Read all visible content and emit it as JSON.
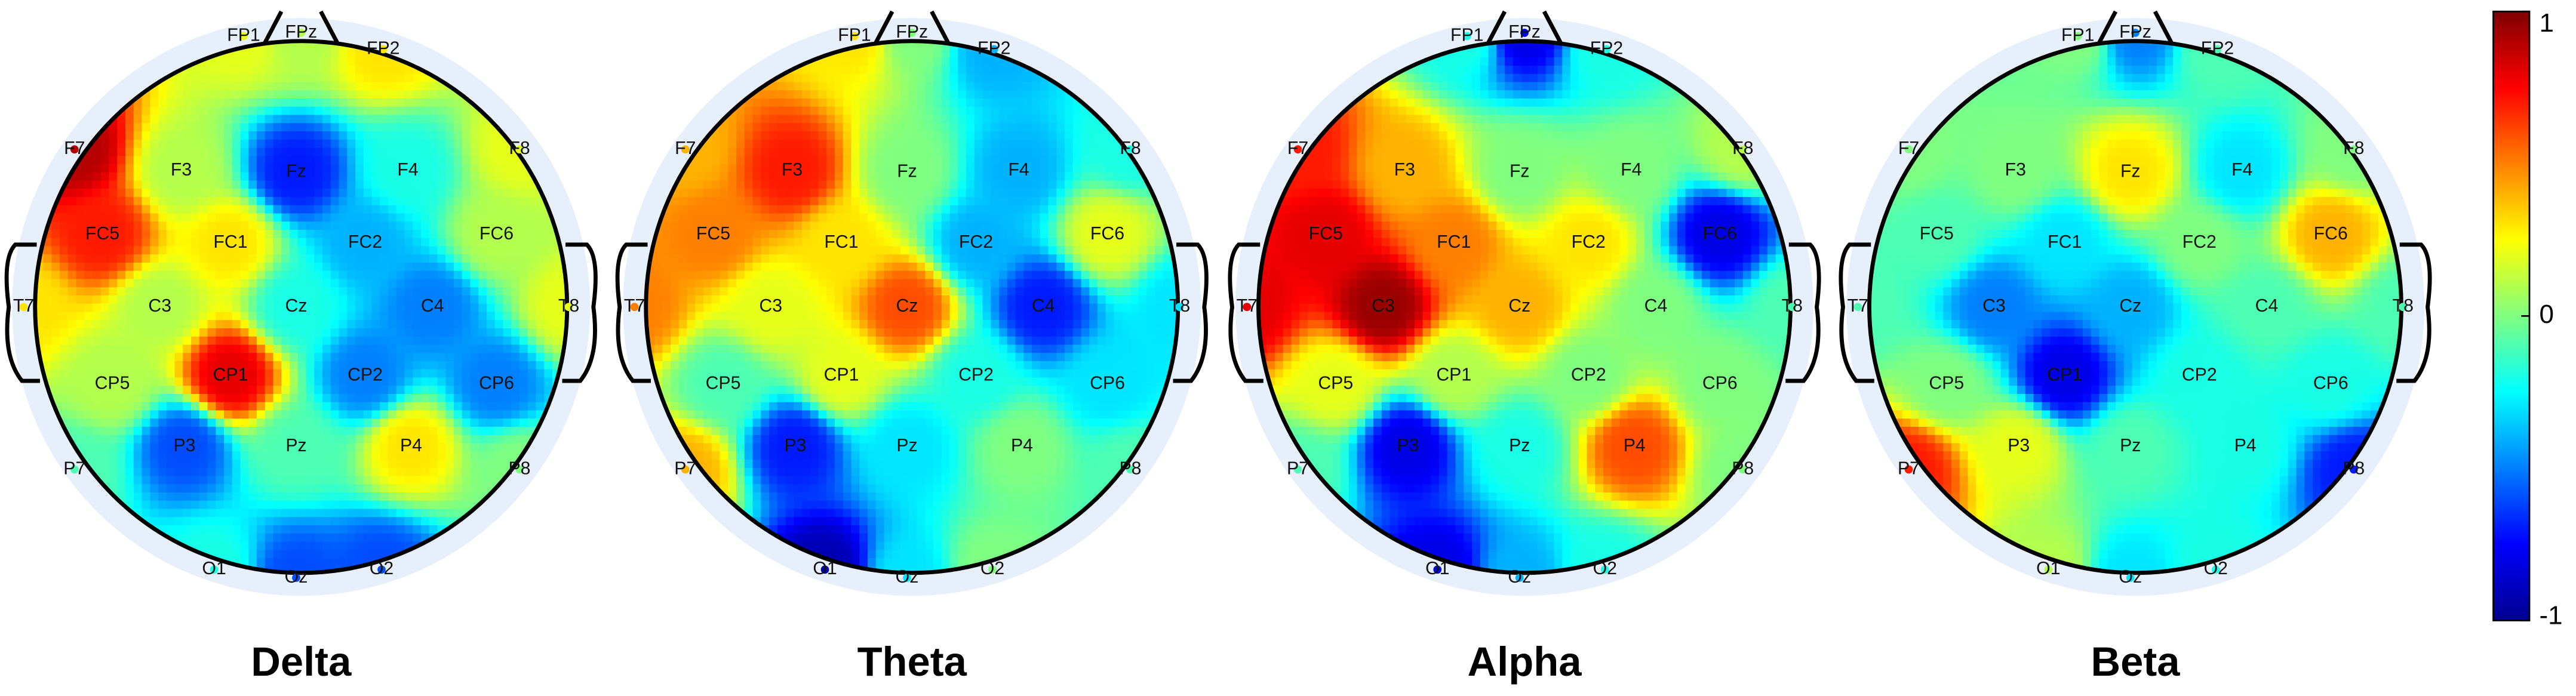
{
  "chart_data": [
    {
      "type": "topoplot",
      "title": "Delta",
      "electrodes": [
        "FP1",
        "FPz",
        "FP2",
        "F7",
        "F3",
        "Fz",
        "F4",
        "F8",
        "FC5",
        "FC1",
        "FC2",
        "FC6",
        "T7",
        "C3",
        "Cz",
        "C4",
        "T8",
        "CP5",
        "CP1",
        "CP2",
        "CP6",
        "P7",
        "P3",
        "Pz",
        "P4",
        "P8",
        "O1",
        "Oz",
        "O2"
      ],
      "values": [
        0.2,
        0.1,
        0.3,
        0.9,
        0.1,
        -0.7,
        -0.2,
        0.2,
        0.7,
        0.3,
        -0.4,
        0.1,
        0.3,
        0.1,
        -0.2,
        -0.5,
        0.2,
        0.1,
        0.8,
        -0.5,
        -0.5,
        -0.1,
        -0.6,
        -0.1,
        0.3,
        0,
        -0.2,
        -0.6,
        -0.6
      ]
    },
    {
      "type": "topoplot",
      "title": "Theta",
      "electrodes": [
        "FP1",
        "FPz",
        "FP2",
        "F7",
        "F3",
        "Fz",
        "F4",
        "F8",
        "FC5",
        "FC1",
        "FC2",
        "FC6",
        "T7",
        "C3",
        "Cz",
        "C4",
        "T8",
        "CP5",
        "CP1",
        "CP2",
        "CP6",
        "P7",
        "P3",
        "Pz",
        "P4",
        "P8",
        "O1",
        "Oz",
        "O2"
      ],
      "values": [
        0.3,
        0,
        -0.4,
        0.4,
        0.7,
        0,
        -0.4,
        -0.2,
        0.5,
        0.3,
        -0.4,
        0.2,
        0.5,
        0.2,
        0.6,
        -0.7,
        -0.3,
        -0.1,
        0.2,
        -0.2,
        -0.3,
        0.4,
        -0.7,
        -0.3,
        0,
        -0.1,
        -0.9,
        -0.3,
        0
      ]
    },
    {
      "type": "topoplot",
      "title": "Alpha",
      "electrodes": [
        "FP1",
        "FPz",
        "FP2",
        "F7",
        "F3",
        "Fz",
        "F4",
        "F8",
        "FC5",
        "FC1",
        "FC2",
        "FC6",
        "T7",
        "C3",
        "Cz",
        "C4",
        "T8",
        "CP5",
        "CP1",
        "CP2",
        "CP6",
        "P7",
        "P3",
        "Pz",
        "P4",
        "P8",
        "O1",
        "Oz",
        "O2"
      ],
      "values": [
        -0.2,
        -0.8,
        -0.2,
        0.7,
        0.4,
        0,
        0,
        0.1,
        0.8,
        0.5,
        0.3,
        -0.8,
        0.8,
        0.95,
        0.4,
        0,
        -0.1,
        0.2,
        0.1,
        0,
        0,
        -0.1,
        -0.8,
        -0.2,
        0.6,
        0,
        -0.8,
        -0.4,
        -0.2
      ]
    },
    {
      "type": "topoplot",
      "title": "Beta",
      "electrodes": [
        "FP1",
        "FPz",
        "FP2",
        "F7",
        "F3",
        "Fz",
        "F4",
        "F8",
        "FC5",
        "FC1",
        "FC2",
        "FC6",
        "T7",
        "C3",
        "Cz",
        "C4",
        "T8",
        "CP5",
        "CP1",
        "CP2",
        "CP6",
        "P7",
        "P3",
        "Pz",
        "P4",
        "P8",
        "O1",
        "Oz",
        "O2"
      ],
      "values": [
        0,
        -0.5,
        -0.1,
        0,
        0,
        0.3,
        -0.3,
        0,
        -0.1,
        -0.3,
        0,
        0.4,
        -0.1,
        -0.5,
        -0.4,
        -0.1,
        -0.1,
        0,
        -0.8,
        -0.2,
        -0.2,
        0.7,
        0.2,
        -0.1,
        -0.2,
        -0.7,
        0.1,
        -0.3,
        -0.2
      ]
    },
    {
      "type": "colorbar",
      "colormap": "jet",
      "clim": [
        -1,
        1
      ],
      "ticks": [
        1,
        0,
        -1
      ]
    }
  ]
}
